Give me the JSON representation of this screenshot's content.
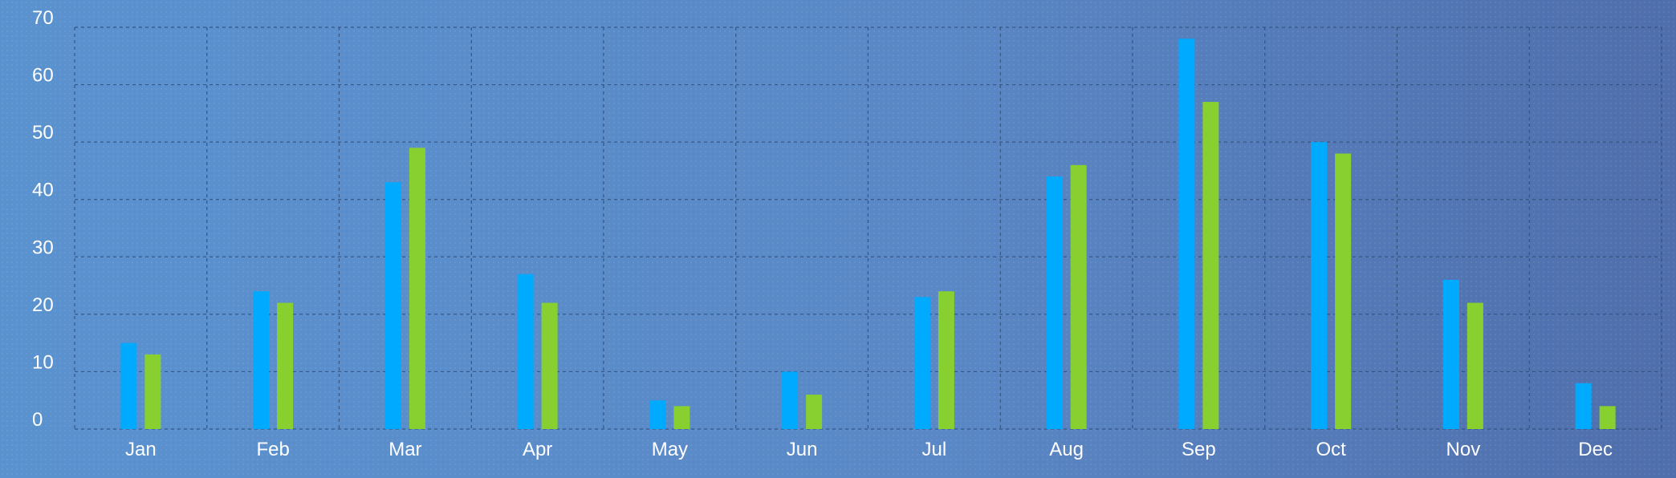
{
  "chart_data": {
    "type": "bar",
    "categories": [
      "Jan",
      "Feb",
      "Mar",
      "Apr",
      "May",
      "Jun",
      "Jul",
      "Aug",
      "Sep",
      "Oct",
      "Nov",
      "Dec"
    ],
    "series": [
      {
        "values": [
          15,
          24,
          43,
          27,
          5,
          10,
          23,
          44,
          68,
          50,
          26,
          8
        ],
        "color": "#00aaff"
      },
      {
        "values": [
          13,
          22,
          49,
          22,
          4,
          6,
          24,
          46,
          57,
          48,
          22,
          4
        ],
        "color": "#88d030"
      }
    ],
    "yticks": [
      "0",
      "10",
      "20",
      "30",
      "40",
      "50",
      "60",
      "70"
    ],
    "ylim": [
      0,
      70
    ],
    "title": "",
    "xlabel": "",
    "ylabel": "",
    "grid": true,
    "legend": "none"
  },
  "colors": {
    "background_left": "#5a92cf",
    "background_right": "#4f6eab",
    "grid": "#2f4d7a",
    "text": "#ffffff"
  }
}
